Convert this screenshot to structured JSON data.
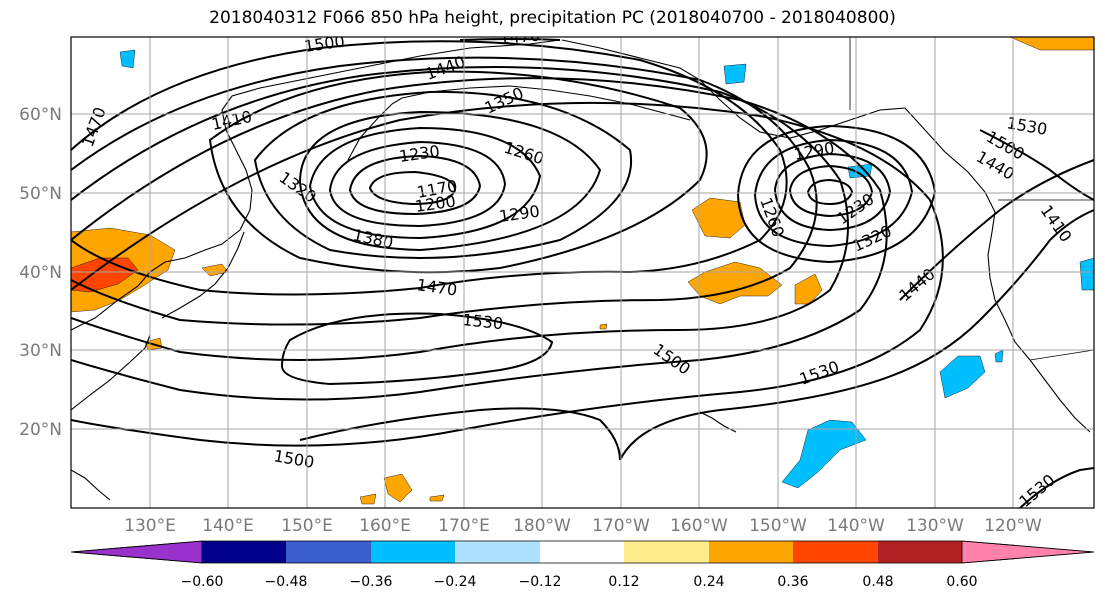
{
  "title": "2018040312 F066 850 hPa height, precipitation PC (2018040700 - 2018040800)",
  "map": {
    "lat_labels": [
      "60°N",
      "50°N",
      "40°N",
      "30°N",
      "20°N"
    ],
    "lon_labels": [
      "130°E",
      "140°E",
      "150°E",
      "160°E",
      "170°E",
      "180°W",
      "170°W",
      "160°W",
      "150°W",
      "140°W",
      "130°W",
      "120°W"
    ],
    "contour_labels": [
      "1500",
      "1470",
      "1440",
      "1350",
      "1470",
      "1410",
      "1230",
      "1260",
      "1290",
      "1320",
      "1170",
      "1200",
      "1290",
      "1380",
      "1470",
      "1530",
      "1500",
      "1530",
      "1500",
      "1530",
      "1260",
      "1230",
      "1320",
      "1440",
      "1530",
      "1500",
      "1440",
      "1410",
      "1530"
    ]
  },
  "colorbar": {
    "colors": [
      "#9932cc",
      "#00008b",
      "#3a5fcd",
      "#00bfff",
      "#b0e2ff",
      "#ffffff",
      "#ffec8b",
      "#ffa500",
      "#ff4500",
      "#b22222",
      "#ff82ab"
    ],
    "labels": [
      "−0.60",
      "−0.48",
      "−0.36",
      "−0.24",
      "−0.12",
      "0.12",
      "0.24",
      "0.36",
      "0.48",
      "0.60"
    ]
  },
  "colors": {
    "grid": "#a6a6a6",
    "contour": "#000000",
    "coast": "#000000"
  }
}
